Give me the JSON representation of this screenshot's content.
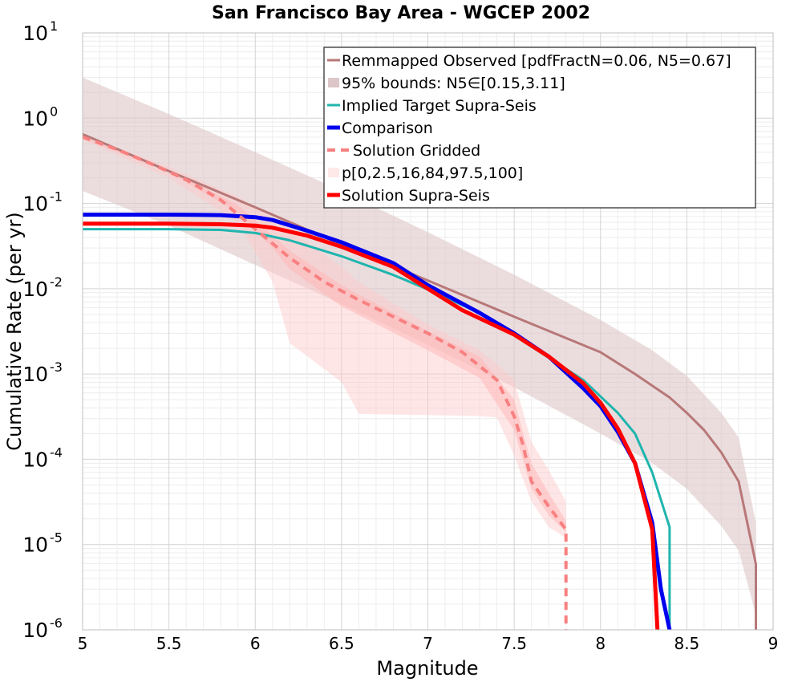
{
  "chart_data": {
    "type": "line",
    "title": "San Francisco Bay Area - WGCEP 2002",
    "xlabel": "Magnitude",
    "ylabel": "Cumulative Rate (per yr)",
    "xlim": [
      5,
      9
    ],
    "ylim": [
      1e-06,
      10
    ],
    "yscale": "log",
    "grid": true,
    "legend_position": "top-right",
    "x_ticks": [
      "5",
      "5.5",
      "6",
      "6.5",
      "7",
      "7.5",
      "8",
      "8.5",
      "9"
    ],
    "y_ticks": [
      {
        "base": "10",
        "exp": "1"
      },
      {
        "base": "10",
        "exp": "0"
      },
      {
        "base": "10",
        "exp": "-1"
      },
      {
        "base": "10",
        "exp": "-2"
      },
      {
        "base": "10",
        "exp": "-3"
      },
      {
        "base": "10",
        "exp": "-4"
      },
      {
        "base": "10",
        "exp": "-5"
      },
      {
        "base": "10",
        "exp": "-6"
      }
    ],
    "legend": [
      "Remmapped Observed [pdfFractN=0.06, N5=0.67]",
      "95% bounds: N5∈[0.15,3.11]",
      "Implied Target Supra-Seis",
      "Comparison",
      "Solution Gridded",
      "p[0,2.5,16,84,97.5,100]",
      "Solution Supra-Seis"
    ],
    "bands": [
      {
        "name": "95% bounds: N5∈[0.15,3.11]",
        "color": "#ddc6c8",
        "opacity": 0.6,
        "x": [
          5.0,
          5.5,
          6.0,
          6.5,
          7.0,
          7.5,
          8.0,
          8.3,
          8.5,
          8.7,
          8.8,
          8.9
        ],
        "upper": [
          3.0,
          1.12,
          0.4,
          0.14,
          0.046,
          0.0146,
          0.0043,
          0.0019,
          0.00095,
          0.00035,
          0.00018,
          1.8e-05
        ],
        "lower": [
          0.14,
          0.055,
          0.019,
          0.0066,
          0.0022,
          0.0007,
          0.0002,
          9e-05,
          4.5e-05,
          1.65e-05,
          8.5e-06,
          1.5e-06
        ]
      },
      {
        "name": "p[0,2.5,16,84,97.5,100] outer",
        "color": "#ffc8c8",
        "opacity": 0.45,
        "x": [
          5.0,
          5.5,
          5.9,
          6.1,
          6.2,
          6.5,
          6.6,
          7.0,
          7.3,
          7.4,
          7.5,
          7.6,
          7.7,
          7.8
        ],
        "upper": [
          0.62,
          0.27,
          0.12,
          0.068,
          0.05,
          0.018,
          0.012,
          0.0038,
          0.0019,
          0.0013,
          0.00085,
          0.00016,
          7.5e-05,
          3.2e-05
        ],
        "lower": [
          0.56,
          0.2,
          0.06,
          0.012,
          0.0023,
          0.0008,
          0.00034,
          0.00033,
          0.00032,
          0.00031,
          0.00011,
          3.2e-05,
          1.6e-05,
          1.2e-05
        ]
      },
      {
        "name": "p[0,2.5,16,84,97.5,100] inner",
        "color": "#ffb8b8",
        "opacity": 0.55,
        "x": [
          5.0,
          5.5,
          5.9,
          6.1,
          6.2,
          6.5,
          7.0,
          7.3,
          7.5,
          7.6,
          7.7,
          7.8
        ],
        "upper": [
          0.6,
          0.25,
          0.095,
          0.042,
          0.028,
          0.011,
          0.0032,
          0.0016,
          0.0005,
          9e-05,
          4e-05,
          1.9e-05
        ],
        "lower": [
          0.58,
          0.23,
          0.078,
          0.03,
          0.017,
          0.0062,
          0.0019,
          0.0009,
          0.00022,
          4.5e-05,
          2.2e-05,
          1.4e-05
        ]
      }
    ],
    "series": [
      {
        "name": "Remmapped Observed [pdfFractN=0.06, N5=0.67]",
        "color": "#b87878",
        "width": 3,
        "dash": "",
        "x": [
          5.0,
          5.5,
          6.0,
          6.5,
          7.0,
          7.5,
          8.0,
          8.2,
          8.4,
          8.5,
          8.6,
          8.7,
          8.8,
          8.9,
          8.9
        ],
        "y": [
          0.65,
          0.24,
          0.09,
          0.033,
          0.0125,
          0.0047,
          0.0018,
          0.001,
          0.00053,
          0.00035,
          0.00022,
          0.00012,
          5.5e-05,
          5.9e-06,
          1e-06
        ]
      },
      {
        "name": "Implied Target Supra-Seis",
        "color": "#1fb5ae",
        "width": 3,
        "dash": "",
        "x": [
          5.0,
          5.5,
          5.8,
          6.0,
          6.2,
          6.5,
          6.8,
          7.0,
          7.3,
          7.6,
          7.9,
          8.1,
          8.2,
          8.3,
          8.4,
          8.4
        ],
        "y": [
          0.05,
          0.05,
          0.049,
          0.045,
          0.037,
          0.024,
          0.0145,
          0.0098,
          0.0052,
          0.0021,
          0.00085,
          0.00035,
          0.0002,
          7e-05,
          1.6e-05,
          1e-06
        ]
      },
      {
        "name": "Comparison",
        "color": "#0000ee",
        "width": 5,
        "dash": "",
        "x": [
          5.0,
          5.5,
          5.8,
          6.0,
          6.1,
          6.3,
          6.5,
          6.8,
          7.0,
          7.3,
          7.5,
          7.7,
          7.9,
          8.0,
          8.1,
          8.2,
          8.3,
          8.35,
          8.4
        ],
        "y": [
          0.074,
          0.074,
          0.073,
          0.069,
          0.064,
          0.048,
          0.035,
          0.02,
          0.011,
          0.0052,
          0.003,
          0.0016,
          0.00068,
          0.00042,
          0.00021,
          9e-05,
          1.8e-05,
          3e-06,
          1e-06
        ]
      },
      {
        "name": "Solution Gridded",
        "color": "#f88080",
        "width": 4,
        "dash": "10,7",
        "x": [
          5.0,
          5.2,
          5.4,
          5.6,
          5.8,
          6.0,
          6.2,
          6.4,
          6.6,
          6.8,
          7.0,
          7.2,
          7.4,
          7.5,
          7.55,
          7.6,
          7.7,
          7.8,
          7.8
        ],
        "y": [
          0.6,
          0.43,
          0.29,
          0.19,
          0.11,
          0.05,
          0.023,
          0.012,
          0.0074,
          0.0047,
          0.003,
          0.0018,
          0.00085,
          0.00032,
          0.00015,
          5.5e-05,
          2.8e-05,
          1.5e-05,
          1e-06
        ]
      },
      {
        "name": "Solution Supra-Seis",
        "color": "#ff0000",
        "width": 5,
        "dash": "",
        "x": [
          5.0,
          5.5,
          5.8,
          6.0,
          6.1,
          6.3,
          6.5,
          6.8,
          7.0,
          7.2,
          7.5,
          7.7,
          7.9,
          8.0,
          8.1,
          8.2,
          8.3,
          8.33
        ],
        "y": [
          0.058,
          0.058,
          0.057,
          0.055,
          0.052,
          0.042,
          0.031,
          0.018,
          0.01,
          0.0056,
          0.0029,
          0.0016,
          0.00078,
          0.00046,
          0.00023,
          9e-05,
          1.5e-05,
          1e-06
        ]
      }
    ]
  }
}
